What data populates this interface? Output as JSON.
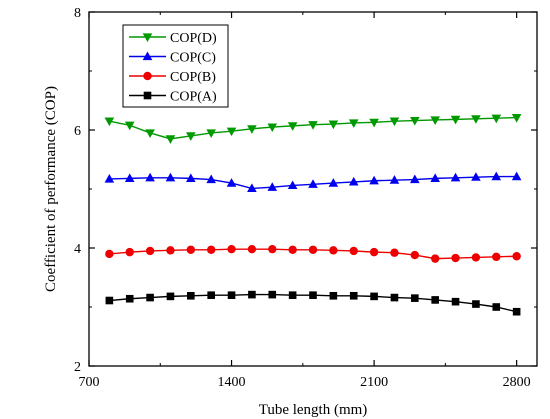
{
  "chart_data": {
    "type": "line",
    "title": "",
    "xlabel": "Tube length (mm)",
    "ylabel": "Coefficient of performance (COP)",
    "xlim": [
      700,
      2900
    ],
    "ylim": [
      2,
      8
    ],
    "xticks": [
      700,
      1400,
      2100,
      2800
    ],
    "yticks": [
      2,
      4,
      6,
      8
    ],
    "x": [
      800,
      900,
      1000,
      1100,
      1200,
      1300,
      1400,
      1500,
      1600,
      1700,
      1800,
      1900,
      2000,
      2100,
      2200,
      2300,
      2400,
      2500,
      2600,
      2700,
      2800
    ],
    "legend_position": "top-left",
    "grid": false,
    "series": [
      {
        "name": "COP(D)",
        "color": "#009900",
        "marker": "triangle-down",
        "values": [
          6.15,
          6.08,
          5.95,
          5.85,
          5.9,
          5.95,
          5.98,
          6.02,
          6.05,
          6.07,
          6.09,
          6.1,
          6.12,
          6.13,
          6.15,
          6.16,
          6.17,
          6.18,
          6.19,
          6.2,
          6.21
        ]
      },
      {
        "name": "COP(C)",
        "color": "#0000ee",
        "marker": "triangle-up",
        "values": [
          5.17,
          5.18,
          5.19,
          5.19,
          5.18,
          5.16,
          5.1,
          5.01,
          5.03,
          5.06,
          5.08,
          5.1,
          5.12,
          5.14,
          5.15,
          5.16,
          5.18,
          5.19,
          5.2,
          5.21,
          5.21
        ]
      },
      {
        "name": "COP(B)",
        "color": "#ee0000",
        "marker": "circle",
        "values": [
          3.9,
          3.93,
          3.95,
          3.96,
          3.97,
          3.97,
          3.98,
          3.98,
          3.98,
          3.97,
          3.97,
          3.96,
          3.95,
          3.93,
          3.92,
          3.88,
          3.82,
          3.83,
          3.84,
          3.85,
          3.86
        ]
      },
      {
        "name": "COP(A)",
        "color": "#000000",
        "marker": "square",
        "values": [
          3.11,
          3.14,
          3.16,
          3.18,
          3.19,
          3.2,
          3.2,
          3.21,
          3.21,
          3.2,
          3.2,
          3.19,
          3.19,
          3.18,
          3.16,
          3.15,
          3.12,
          3.09,
          3.05,
          3.0,
          2.92
        ]
      }
    ]
  }
}
